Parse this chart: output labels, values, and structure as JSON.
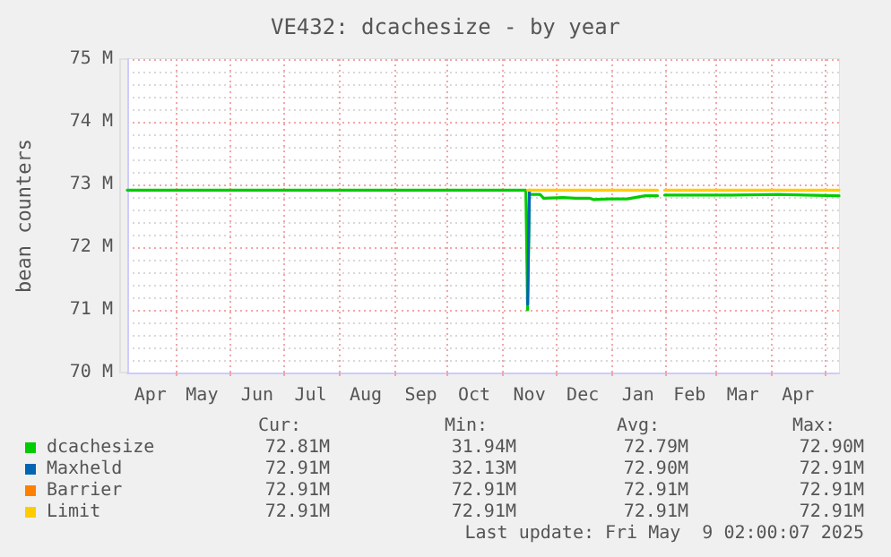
{
  "chart_data": {
    "type": "line",
    "title": "VE432: dcachesize - by year",
    "ylabel": "bean counters",
    "xlim": [
      "2024-04-04",
      "2025-05-09"
    ],
    "xticks": [
      {
        "value": "2024-04-17",
        "label": "Apr"
      },
      {
        "value": "2024-05-16",
        "label": "May"
      },
      {
        "value": "2024-06-16",
        "label": "Jun"
      },
      {
        "value": "2024-07-16",
        "label": "Jul"
      },
      {
        "value": "2024-08-16",
        "label": "Aug"
      },
      {
        "value": "2024-09-16",
        "label": "Sep"
      },
      {
        "value": "2024-10-16",
        "label": "Oct"
      },
      {
        "value": "2024-11-16",
        "label": "Nov"
      },
      {
        "value": "2024-12-16",
        "label": "Dec"
      },
      {
        "value": "2025-01-16",
        "label": "Jan"
      },
      {
        "value": "2025-02-14",
        "label": "Feb"
      },
      {
        "value": "2025-03-16",
        "label": "Mar"
      },
      {
        "value": "2025-04-16",
        "label": "Apr"
      },
      {
        "value": "2024-05-01",
        "label": null
      },
      {
        "value": "2024-06-01",
        "label": null
      },
      {
        "value": "2024-07-01",
        "label": null
      },
      {
        "value": "2024-08-01",
        "label": null
      },
      {
        "value": "2024-09-01",
        "label": null
      },
      {
        "value": "2024-10-01",
        "label": null
      },
      {
        "value": "2024-11-01",
        "label": null
      },
      {
        "value": "2024-12-01",
        "label": null
      },
      {
        "value": "2025-01-01",
        "label": null
      },
      {
        "value": "2025-02-01",
        "label": null
      },
      {
        "value": "2025-03-01",
        "label": null
      },
      {
        "value": "2025-04-01",
        "label": null
      },
      {
        "value": "2025-05-01",
        "label": null
      }
    ],
    "ylim": [
      70,
      75
    ],
    "yticks": [
      {
        "value": 70,
        "label": "70 M"
      },
      {
        "value": 71,
        "label": "71 M"
      },
      {
        "value": 72,
        "label": "72 M"
      },
      {
        "value": 73,
        "label": "73 M"
      },
      {
        "value": 74,
        "label": "74 M"
      },
      {
        "value": 75,
        "label": "75 M"
      }
    ],
    "grid": true,
    "legend": "bottom",
    "series": [
      {
        "name": "dcachesize",
        "color": "#00cc00",
        "x": [
          "2024-04-04",
          "2024-11-14",
          "2024-11-15",
          "2024-11-16",
          "2024-11-22",
          "2024-11-24",
          "2024-12-05",
          "2024-12-12",
          "2024-12-20",
          "2024-12-22",
          "2024-12-31",
          "2025-01-10",
          "2025-01-20",
          "2025-01-27",
          "2025-01-29",
          "2025-01-31",
          "2025-02-15",
          "2025-03-10",
          "2025-04-05",
          "2025-04-20",
          "2025-05-09"
        ],
        "values": [
          72.91,
          72.91,
          71.0,
          72.84,
          72.84,
          72.78,
          72.79,
          72.78,
          72.78,
          72.76,
          72.77,
          72.77,
          72.82,
          72.82,
          null,
          72.83,
          72.83,
          72.83,
          72.84,
          72.83,
          72.82
        ]
      },
      {
        "name": "Maxheld",
        "color": "#0066b3",
        "x": [
          "2024-11-15",
          "2024-11-16"
        ],
        "values": [
          71.09,
          72.91
        ]
      },
      {
        "name": "Barrier",
        "color": "#ff8000"
      },
      {
        "name": "Limit",
        "color": "#ffcc00",
        "x": [
          "2024-11-15",
          "2025-01-27",
          "2025-01-29",
          "2025-01-31",
          "2025-05-09"
        ],
        "values": [
          72.91,
          72.91,
          null,
          72.91,
          72.91
        ]
      }
    ],
    "annotations": [
      "Cur:",
      "Min:",
      "Avg:",
      "Max:",
      "72.81M",
      "31.94M",
      "72.79M",
      "72.90M",
      "72.91M",
      "32.13M",
      "72.90M",
      "72.91M",
      "72.91M",
      "72.91M",
      "72.91M",
      "72.91M",
      "72.91M",
      "72.91M",
      "72.91M",
      "72.91M",
      "Last update: Fri May  9 02:00:07 2025"
    ]
  }
}
